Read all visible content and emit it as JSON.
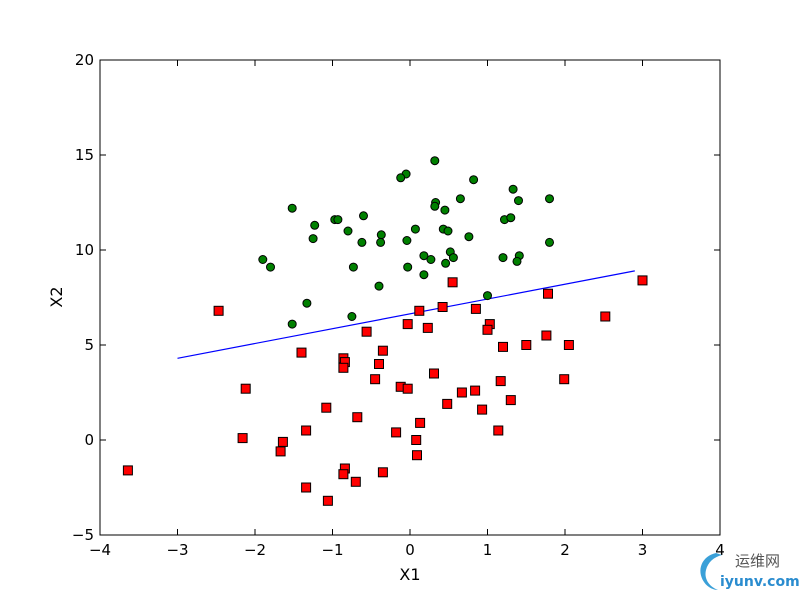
{
  "chart_data": {
    "type": "scatter",
    "xlabel": "X1",
    "ylabel": "X2",
    "xlim": [
      -4,
      4
    ],
    "ylim": [
      -5,
      20
    ],
    "x_ticks": [
      "−4",
      "−3",
      "−2",
      "−1",
      "0",
      "1",
      "2",
      "3",
      "4"
    ],
    "y_ticks": [
      "−5",
      "0",
      "5",
      "10",
      "15",
      "20"
    ],
    "grid": false,
    "legend": "none",
    "series": [
      {
        "marker": "circle",
        "color": "#008000",
        "points": [
          [
            0.32,
            14.7
          ],
          [
            -0.05,
            14.0
          ],
          [
            -0.12,
            13.8
          ],
          [
            0.82,
            13.7
          ],
          [
            1.33,
            13.2
          ],
          [
            0.33,
            12.5
          ],
          [
            0.65,
            12.7
          ],
          [
            1.4,
            12.6
          ],
          [
            1.8,
            12.7
          ],
          [
            0.32,
            12.3
          ],
          [
            0.45,
            12.1
          ],
          [
            -1.52,
            12.2
          ],
          [
            -0.97,
            11.6
          ],
          [
            -0.6,
            11.8
          ],
          [
            -1.23,
            11.3
          ],
          [
            1.22,
            11.6
          ],
          [
            1.3,
            11.7
          ],
          [
            -0.93,
            11.6
          ],
          [
            0.07,
            11.1
          ],
          [
            0.43,
            11.1
          ],
          [
            0.49,
            11.0
          ],
          [
            -0.8,
            11.0
          ],
          [
            -0.37,
            10.8
          ],
          [
            -1.25,
            10.6
          ],
          [
            0.76,
            10.7
          ],
          [
            -0.38,
            10.4
          ],
          [
            -0.62,
            10.4
          ],
          [
            -0.04,
            10.5
          ],
          [
            1.8,
            10.4
          ],
          [
            0.52,
            9.9
          ],
          [
            0.18,
            9.7
          ],
          [
            0.27,
            9.5
          ],
          [
            1.41,
            9.7
          ],
          [
            1.2,
            9.6
          ],
          [
            0.56,
            9.6
          ],
          [
            -1.9,
            9.5
          ],
          [
            0.46,
            9.3
          ],
          [
            1.38,
            9.4
          ],
          [
            -1.8,
            9.1
          ],
          [
            -0.73,
            9.1
          ],
          [
            -0.03,
            9.1
          ],
          [
            0.18,
            8.7
          ],
          [
            -0.4,
            8.1
          ],
          [
            1.0,
            7.6
          ],
          [
            -1.33,
            7.2
          ],
          [
            -0.75,
            6.5
          ],
          [
            -1.52,
            6.1
          ]
        ]
      },
      {
        "marker": "square",
        "color": "#ff0000",
        "points": [
          [
            3.0,
            8.4
          ],
          [
            0.55,
            8.3
          ],
          [
            1.78,
            7.7
          ],
          [
            -2.47,
            6.8
          ],
          [
            0.42,
            7.0
          ],
          [
            0.85,
            6.9
          ],
          [
            0.12,
            6.8
          ],
          [
            2.52,
            6.5
          ],
          [
            -0.03,
            6.1
          ],
          [
            1.03,
            6.1
          ],
          [
            -0.56,
            5.7
          ],
          [
            0.23,
            5.9
          ],
          [
            1.0,
            5.8
          ],
          [
            1.76,
            5.5
          ],
          [
            1.2,
            4.9
          ],
          [
            1.5,
            5.0
          ],
          [
            2.05,
            5.0
          ],
          [
            -1.4,
            4.6
          ],
          [
            -0.35,
            4.7
          ],
          [
            -0.86,
            4.3
          ],
          [
            -0.84,
            4.1
          ],
          [
            -0.4,
            4.0
          ],
          [
            -0.86,
            3.8
          ],
          [
            0.31,
            3.5
          ],
          [
            -0.45,
            3.2
          ],
          [
            1.17,
            3.1
          ],
          [
            1.99,
            3.2
          ],
          [
            -2.12,
            2.7
          ],
          [
            -0.12,
            2.8
          ],
          [
            -0.03,
            2.7
          ],
          [
            0.84,
            2.6
          ],
          [
            0.67,
            2.5
          ],
          [
            1.3,
            2.1
          ],
          [
            0.48,
            1.9
          ],
          [
            -1.08,
            1.7
          ],
          [
            0.93,
            1.6
          ],
          [
            -0.68,
            1.2
          ],
          [
            0.13,
            0.9
          ],
          [
            -1.34,
            0.5
          ],
          [
            -0.18,
            0.4
          ],
          [
            1.14,
            0.5
          ],
          [
            -2.16,
            0.1
          ],
          [
            0.08,
            0.0
          ],
          [
            -1.64,
            -0.1
          ],
          [
            -1.67,
            -0.6
          ],
          [
            0.09,
            -0.8
          ],
          [
            -0.84,
            -1.5
          ],
          [
            -0.35,
            -1.7
          ],
          [
            -3.64,
            -1.6
          ],
          [
            -0.86,
            -1.8
          ],
          [
            -0.7,
            -2.2
          ],
          [
            -1.34,
            -2.5
          ],
          [
            -1.06,
            -3.2
          ]
        ]
      }
    ],
    "lines": [
      {
        "color": "#0000ff",
        "x": [
          -3.0,
          2.9
        ],
        "y": [
          4.3,
          8.9
        ]
      }
    ]
  },
  "watermark": {
    "cn_text": "运维网",
    "url_text": "iyunv.com",
    "icon": "swirl-logo"
  }
}
